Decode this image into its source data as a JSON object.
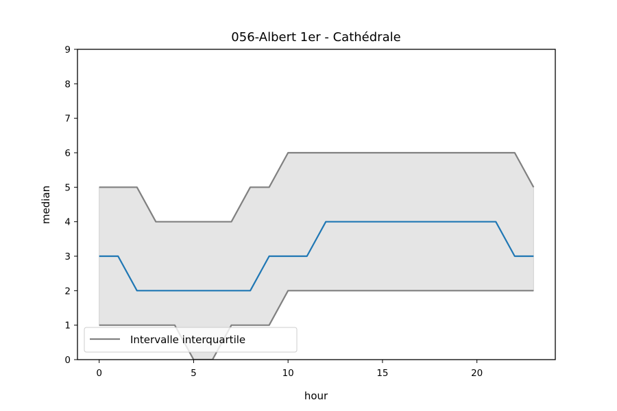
{
  "chart_data": {
    "type": "line",
    "title": "056-Albert 1er - Cathédrale",
    "xlabel": "hour",
    "ylabel": "median",
    "xlim": [
      -1.15,
      24.15
    ],
    "ylim": [
      0,
      9
    ],
    "xticks": [
      0,
      5,
      10,
      15,
      20
    ],
    "yticks": [
      0,
      1,
      2,
      3,
      4,
      5,
      6,
      7,
      8,
      9
    ],
    "grid": false,
    "legend": {
      "location": "lower-left",
      "entries": [
        "Intervalle interquartile"
      ]
    },
    "x": [
      0,
      1,
      2,
      3,
      4,
      5,
      6,
      7,
      8,
      9,
      10,
      11,
      12,
      13,
      14,
      15,
      16,
      17,
      18,
      19,
      20,
      21,
      22,
      23
    ],
    "median": [
      3,
      3,
      2,
      2,
      2,
      2,
      2,
      2,
      2,
      3,
      3,
      3,
      4,
      4,
      4,
      4,
      4,
      4,
      4,
      4,
      4,
      4,
      3,
      3
    ],
    "q1": [
      1,
      1,
      1,
      1,
      1,
      0,
      0,
      1,
      1,
      1,
      2,
      2,
      2,
      2,
      2,
      2,
      2,
      2,
      2,
      2,
      2,
      2,
      2,
      2
    ],
    "q3": [
      5,
      5,
      5,
      4,
      4,
      4,
      4,
      4,
      5,
      5,
      6,
      6,
      6,
      6,
      6,
      6,
      6,
      6,
      6,
      6,
      6,
      6,
      6,
      5
    ],
    "colors": {
      "median": "#1f77b4",
      "quartile": "#808080",
      "fill": "#e5e5e5"
    }
  }
}
